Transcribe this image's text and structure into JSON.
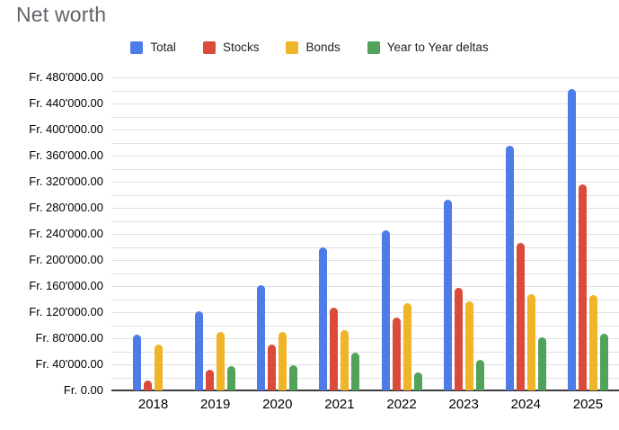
{
  "title": "Net worth",
  "legend": {
    "items": [
      {
        "label": "Total",
        "color": "#4d7ce8"
      },
      {
        "label": "Stocks",
        "color": "#db4b3c"
      },
      {
        "label": "Bonds",
        "color": "#f0b429"
      },
      {
        "label": "Year to Year deltas",
        "color": "#50a358"
      }
    ]
  },
  "y_axis": {
    "tick_labels": [
      "Fr. 480'000.00",
      "Fr. 440'000.00",
      "Fr. 400'000.00",
      "Fr. 360'000.00",
      "Fr. 320'000.00",
      "Fr. 280'000.00",
      "Fr. 240'000.00",
      "Fr. 200'000.00",
      "Fr. 160'000.00",
      "Fr. 120'000.00",
      "Fr. 80'000.00",
      "Fr. 40'000.00",
      "Fr. 0.00"
    ],
    "currency_prefix": "Fr."
  },
  "chart_data": {
    "type": "bar",
    "title": "Net worth",
    "categories": [
      "2018",
      "2019",
      "2020",
      "2021",
      "2022",
      "2023",
      "2024",
      "2025"
    ],
    "series": [
      {
        "name": "Total",
        "color": "#4d7ce8",
        "values": [
          85000,
          122000,
          161000,
          219000,
          246000,
          293000,
          375000,
          462000
        ]
      },
      {
        "name": "Stocks",
        "color": "#db4b3c",
        "values": [
          15000,
          32000,
          71000,
          127000,
          112000,
          157000,
          226000,
          316000
        ]
      },
      {
        "name": "Bonds",
        "color": "#f0b429",
        "values": [
          70000,
          90000,
          90000,
          92000,
          134000,
          136000,
          148000,
          146000
        ]
      },
      {
        "name": "Year to Year deltas",
        "color": "#50a358",
        "values": [
          null,
          37000,
          39000,
          58000,
          27000,
          47000,
          82000,
          87000
        ]
      }
    ],
    "ylim": [
      0,
      480000
    ],
    "ytick_step": 40000,
    "gridline_step": 20000,
    "grid": true,
    "legend_position": "top"
  }
}
